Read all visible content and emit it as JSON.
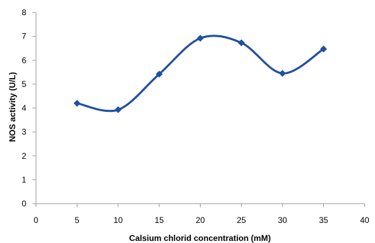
{
  "chart_data": {
    "type": "line",
    "smooth": true,
    "marker": "diamond",
    "x": [
      5,
      10,
      15,
      20,
      25,
      30,
      35
    ],
    "series": [
      {
        "values": [
          4.2,
          3.93,
          5.42,
          6.92,
          6.73,
          5.45,
          6.47
        ]
      }
    ],
    "xlabel": "Calsium  chlorid concentration (mM)",
    "ylabel": "NOS activity (U/L)",
    "xlim": [
      0,
      40
    ],
    "ylim": [
      0,
      8
    ],
    "xticks": [
      "0",
      "5",
      "10",
      "15",
      "20",
      "25",
      "30",
      "35",
      "40"
    ],
    "yticks": [
      "0",
      "1",
      "2",
      "3",
      "4",
      "5",
      "6",
      "7",
      "8"
    ],
    "grid": false,
    "legend": "none",
    "colors": {
      "series": "#1f4fa0",
      "axis": "#9a9a9a"
    }
  }
}
